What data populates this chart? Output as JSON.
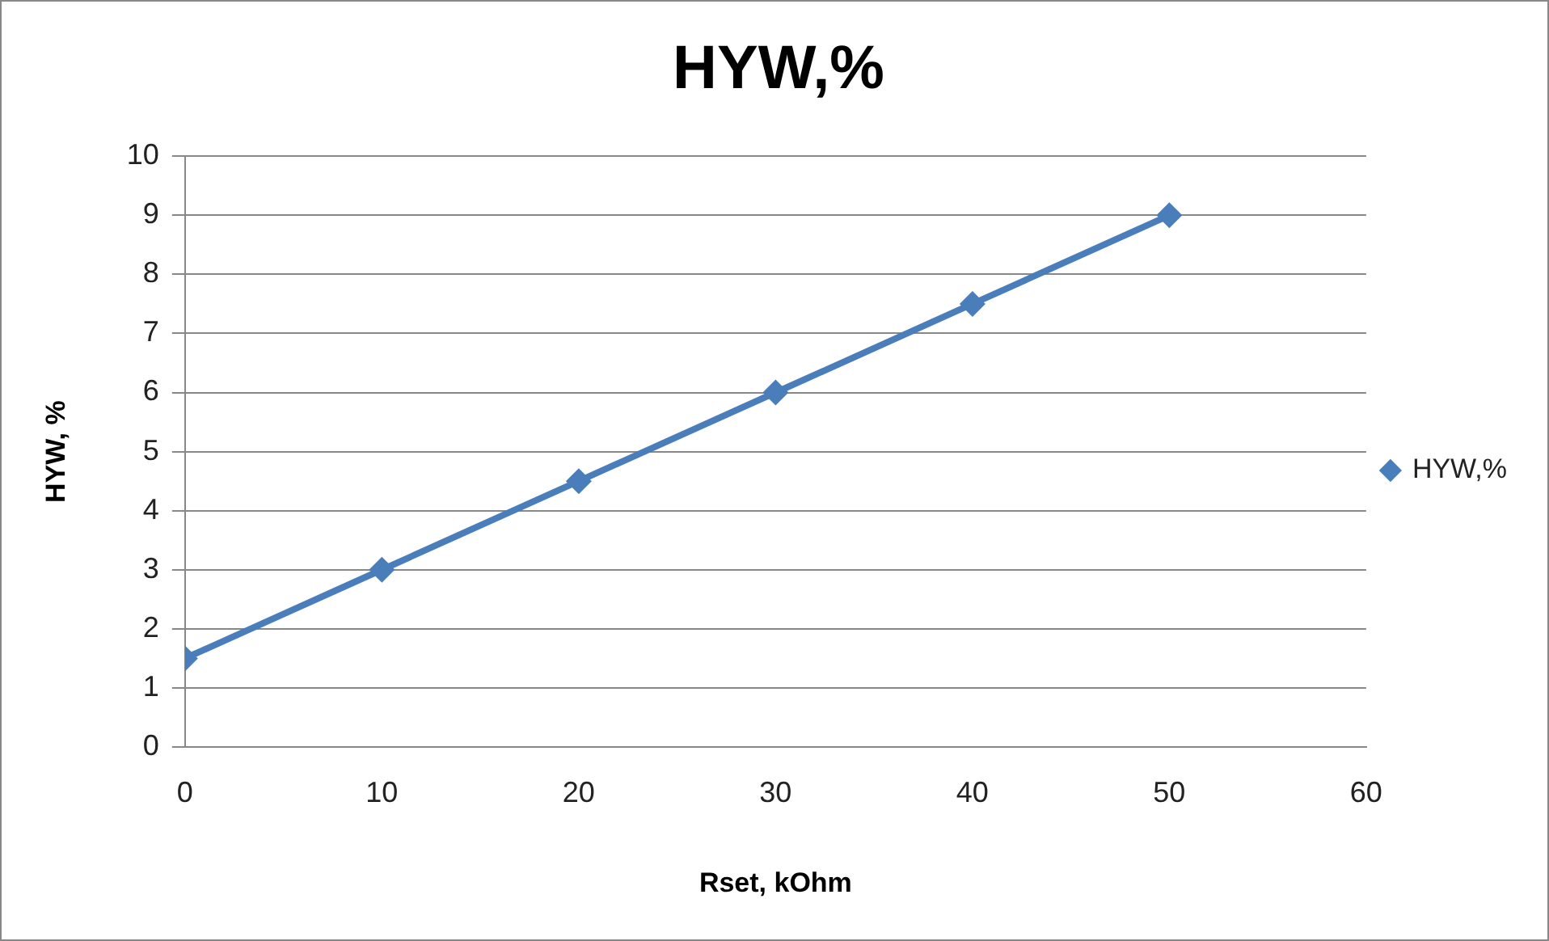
{
  "chart_data": {
    "type": "line",
    "title": "HYW,%",
    "xlabel": "Rset, kOhm",
    "ylabel": "HYW, %",
    "x": [
      0,
      10,
      20,
      30,
      40,
      50
    ],
    "series": [
      {
        "name": "HYW,%",
        "color": "#4a7ebb",
        "values": [
          1.5,
          3,
          4.5,
          6,
          7.5,
          9
        ]
      }
    ],
    "xlim": [
      0,
      60
    ],
    "xticks": [
      0,
      10,
      20,
      30,
      40,
      50,
      60
    ],
    "ylim": [
      0,
      10
    ],
    "yticks": [
      0,
      1,
      2,
      3,
      4,
      5,
      6,
      7,
      8,
      9,
      10
    ],
    "grid": "y",
    "legend": "right",
    "marker": "diamond",
    "line_style": "solid"
  }
}
